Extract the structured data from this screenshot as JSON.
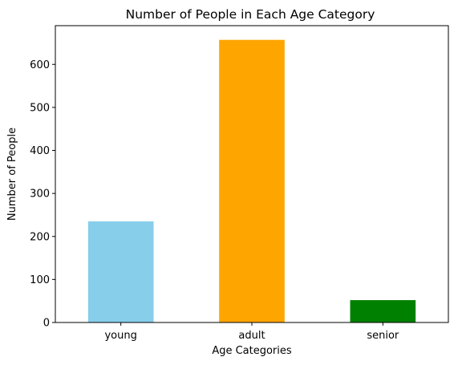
{
  "chart_data": {
    "type": "bar",
    "title": "Number of People in Each Age Category",
    "xlabel": "Age Categories",
    "ylabel": "Number of People",
    "categories": [
      "young",
      "adult",
      "senior"
    ],
    "values": [
      235,
      657,
      52
    ],
    "colors": [
      "#87ceeb",
      "#ffa500",
      "#008000"
    ],
    "ylim": [
      0,
      690
    ],
    "yticks": [
      0,
      100,
      200,
      300,
      400,
      500,
      600
    ],
    "grid": false,
    "legend": "none"
  }
}
